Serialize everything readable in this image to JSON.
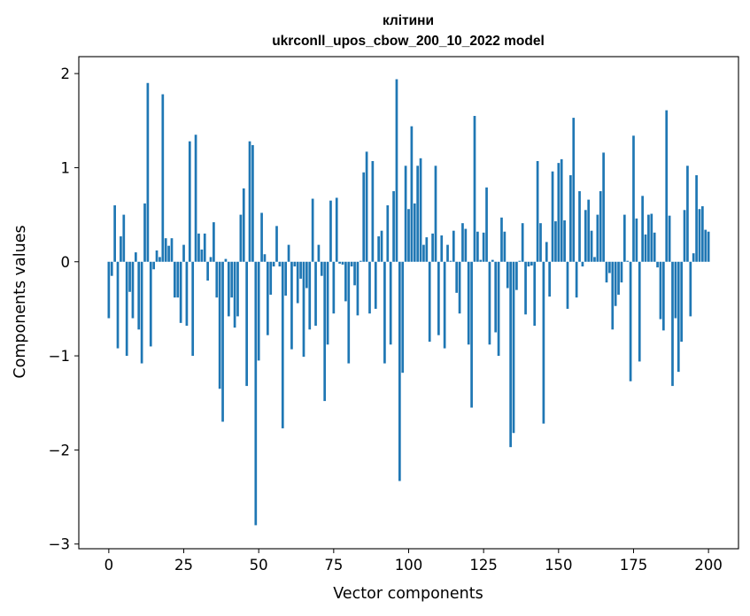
{
  "chart_data": {
    "type": "bar",
    "title_line1": "клітини",
    "title_line2": "ukrconll_upos_cbow_200_10_2022 model",
    "xlabel": "Vector components",
    "ylabel": "Components values",
    "xlim": [
      -10,
      210
    ],
    "ylim": [
      -3.05,
      2.18
    ],
    "xticks": [
      0,
      25,
      50,
      75,
      100,
      125,
      150,
      175,
      200
    ],
    "xtick_labels": [
      "0",
      "25",
      "50",
      "75",
      "100",
      "125",
      "150",
      "175",
      "200"
    ],
    "yticks": [
      2,
      1,
      0,
      -1,
      -2,
      -3
    ],
    "ytick_labels": [
      "2",
      "1",
      "0",
      "−1",
      "−2",
      "−3"
    ],
    "bar_color": "#1f77b4",
    "values": [
      -0.6,
      -0.15,
      0.6,
      -0.92,
      0.27,
      0.5,
      -1.0,
      -0.32,
      -0.6,
      0.1,
      -0.72,
      -1.08,
      0.62,
      1.9,
      -0.9,
      -0.08,
      0.12,
      0.05,
      1.78,
      0.25,
      0.17,
      0.25,
      -0.38,
      -0.38,
      -0.65,
      0.18,
      -0.68,
      1.28,
      -1.0,
      1.35,
      0.3,
      0.13,
      0.3,
      -0.2,
      0.05,
      0.42,
      -0.38,
      -1.35,
      -1.7,
      0.03,
      -0.58,
      -0.38,
      -0.7,
      -0.58,
      0.5,
      0.78,
      -1.32,
      1.28,
      1.24,
      -2.8,
      -1.05,
      0.52,
      0.08,
      -0.78,
      -0.35,
      -0.05,
      0.38,
      -0.05,
      -1.77,
      -0.36,
      0.18,
      -0.93,
      -0.05,
      -0.44,
      -0.18,
      -1.01,
      -0.28,
      -0.72,
      0.67,
      -0.68,
      0.18,
      -0.15,
      -1.48,
      -0.88,
      0.65,
      -0.55,
      0.68,
      -0.02,
      -0.03,
      -0.42,
      -1.08,
      -0.05,
      -0.25,
      -0.57,
      0.01,
      0.95,
      1.17,
      -0.55,
      1.07,
      -0.5,
      0.27,
      0.33,
      -1.08,
      0.6,
      -0.88,
      0.75,
      1.94,
      -2.33,
      -1.18,
      1.02,
      0.56,
      1.44,
      0.62,
      1.02,
      1.1,
      0.18,
      0.26,
      -0.85,
      0.3,
      1.02,
      -0.78,
      0.28,
      -0.92,
      0.18,
      0.01,
      0.33,
      -0.33,
      -0.55,
      0.41,
      0.35,
      -0.88,
      -1.55,
      1.55,
      0.32,
      0.02,
      0.31,
      0.79,
      -0.88,
      0.02,
      -0.75,
      -1.0,
      0.47,
      0.32,
      -0.28,
      -1.97,
      -1.82,
      -0.3,
      0.01,
      0.41,
      -0.56,
      -0.05,
      -0.04,
      -0.68,
      1.07,
      0.41,
      -1.72,
      0.21,
      -0.37,
      0.96,
      0.43,
      1.05,
      1.09,
      0.44,
      -0.5,
      0.92,
      1.53,
      -0.38,
      0.75,
      -0.05,
      0.55,
      0.66,
      0.33,
      0.05,
      0.5,
      0.75,
      1.16,
      -0.22,
      -0.12,
      -0.72,
      -0.47,
      -0.35,
      -0.22,
      0.5,
      0.01,
      -1.27,
      1.34,
      0.46,
      -1.06,
      0.7,
      0.29,
      0.5,
      0.51,
      0.31,
      -0.06,
      -0.61,
      -0.73,
      1.61,
      0.49,
      -1.32,
      -0.6,
      -1.17,
      -0.85,
      0.55,
      1.02,
      -0.58,
      0.09,
      0.92,
      0.56,
      0.59,
      0.34,
      0.32
    ]
  }
}
